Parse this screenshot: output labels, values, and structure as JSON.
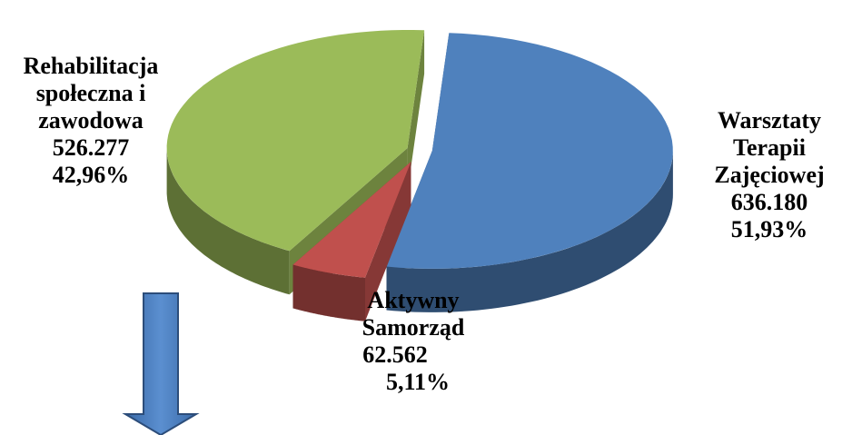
{
  "chart_data": {
    "type": "pie3d",
    "categories": [
      "Warsztaty\nTerapii\nZajęciowej",
      "Aktywny\nSamorząd",
      "Rehabilitacja\nspołeczna i\nzawodowa"
    ],
    "values": [
      636180,
      62562,
      526277
    ],
    "value_labels": [
      "636.180",
      "62.562",
      "526.277"
    ],
    "percentages": [
      51.93,
      5.11,
      42.96
    ],
    "percentage_labels": [
      "51,93%",
      "5,11%",
      "42,96%"
    ],
    "colors": [
      "#4f81bd",
      "#c0504d",
      "#9bbb59"
    ]
  }
}
